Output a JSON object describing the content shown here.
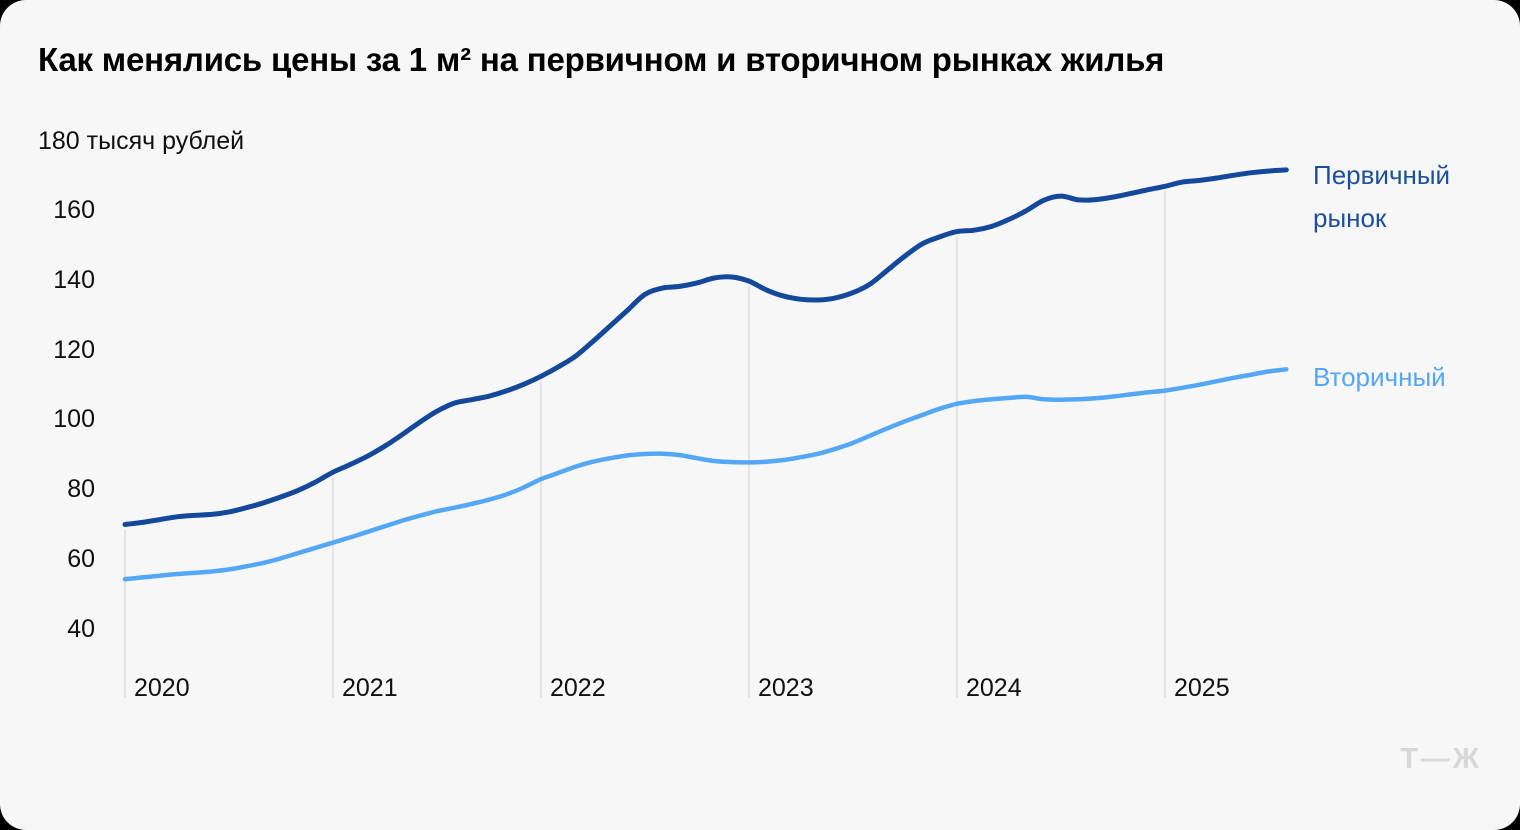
{
  "title": "Как менялись цены за 1 м² на первичном и вторичном рынках жилья",
  "chart_data": {
    "type": "line",
    "unit_label": "180 тысяч рублей",
    "y_ticks": [
      160,
      140,
      120,
      100,
      80,
      60,
      40
    ],
    "y_axis_top_tick": 180,
    "ylim": [
      31,
      184
    ],
    "x_ticks": [
      "2020",
      "2021",
      "2022",
      "2023",
      "2024",
      "2025"
    ],
    "x_unit": "months, Jan 2020 — Aug 2025",
    "grid": "vertical-year-lines-only",
    "legend_position": "right-of-line-ends",
    "series": [
      {
        "name": "Первичный рынок",
        "label_lines": [
          "Первичный",
          "рынок"
        ],
        "color": "#14489b",
        "values": [
          70.0,
          70.6,
          71.4,
          72.2,
          72.6,
          72.9,
          73.6,
          74.8,
          76.2,
          77.9,
          79.8,
          82.2,
          85.0,
          87.2,
          89.6,
          92.5,
          95.8,
          99.3,
          102.5,
          104.8,
          105.8,
          106.8,
          108.3,
          110.2,
          112.5,
          115.2,
          118.3,
          122.5,
          127.0,
          131.5,
          136.0,
          137.8,
          138.3,
          139.3,
          140.7,
          141.0,
          139.8,
          137.3,
          135.5,
          134.6,
          134.4,
          135.0,
          136.5,
          139.0,
          143.0,
          147.0,
          150.5,
          152.5,
          154.0,
          154.4,
          155.5,
          157.5,
          160.0,
          163.0,
          164.2,
          163.1,
          163.2,
          163.9,
          164.9,
          166.0,
          167.0,
          168.2,
          168.7,
          169.4,
          170.2,
          170.9,
          171.4,
          171.7
        ]
      },
      {
        "name": "Вторичный",
        "label_lines": [
          "Вторичный"
        ],
        "color": "#54a7f4",
        "values": [
          54.3,
          54.8,
          55.3,
          55.8,
          56.1,
          56.5,
          57.1,
          58.0,
          59.0,
          60.3,
          61.8,
          63.3,
          64.8,
          66.3,
          67.9,
          69.5,
          71.1,
          72.5,
          73.8,
          74.8,
          75.9,
          77.1,
          78.6,
          80.6,
          83.0,
          84.8,
          86.6,
          88.0,
          89.0,
          89.8,
          90.2,
          90.3,
          89.9,
          89.0,
          88.2,
          87.9,
          87.8,
          88.0,
          88.5,
          89.3,
          90.3,
          91.7,
          93.4,
          95.5,
          97.6,
          99.6,
          101.4,
          103.2,
          104.6,
          105.4,
          105.9,
          106.3,
          106.6,
          105.9,
          105.8,
          105.9,
          106.2,
          106.7,
          107.3,
          107.9,
          108.4,
          109.2,
          110.1,
          111.1,
          112.1,
          113.0,
          113.9,
          114.5
        ]
      }
    ]
  },
  "colors": {
    "card_background": "#f7f7f8",
    "page_background": "#000000",
    "gridline": "#e3e3e5",
    "text": "#0f0f0f",
    "primary_line": "#14489b",
    "secondary_line": "#54a7f4",
    "logo": "#d8d8da"
  },
  "branding": {
    "logo_text": "Т—Ж"
  }
}
